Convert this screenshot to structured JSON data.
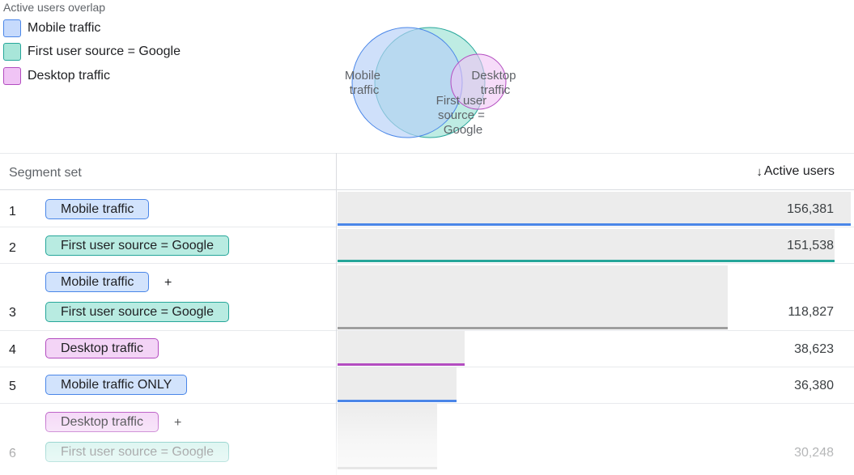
{
  "overlap": {
    "title": "Active users overlap",
    "legend": [
      {
        "label": "Mobile traffic",
        "fill": "#c6dafc",
        "border": "#4a86e8"
      },
      {
        "label": "First user source = Google",
        "fill": "#a8e6d9",
        "border": "#26a69a"
      },
      {
        "label": "Desktop traffic",
        "fill": "#f0c4f5",
        "border": "#b34cc0"
      }
    ],
    "venn_labels": {
      "mobile": [
        "Mobile",
        "traffic"
      ],
      "google": [
        "First user",
        "source =",
        "Google"
      ],
      "desktop": [
        "Desktop",
        "traffic"
      ]
    }
  },
  "table": {
    "header": {
      "segment_set": "Segment set",
      "active_users": "Active users",
      "sort_arrow": "↓"
    },
    "rows": [
      {
        "num": "1",
        "segments": [
          "Mobile traffic"
        ],
        "value": "156,381",
        "users": 156381,
        "color": "#4a86e8"
      },
      {
        "num": "2",
        "segments": [
          "First user source = Google"
        ],
        "value": "151,538",
        "users": 151538,
        "color": "#26a69a"
      },
      {
        "num": "3",
        "segments": [
          "Mobile traffic",
          "First user source = Google"
        ],
        "plus": "+",
        "value": "118,827",
        "users": 118827,
        "color": "#9e9e9e"
      },
      {
        "num": "4",
        "segments": [
          "Desktop traffic"
        ],
        "value": "38,623",
        "users": 38623,
        "color": "#b34cc0"
      },
      {
        "num": "5",
        "segments": [
          "Mobile traffic ONLY"
        ],
        "value": "36,380",
        "users": 36380,
        "color": "#4a86e8"
      },
      {
        "num": "6",
        "segments": [
          "Desktop traffic",
          "First user source = Google"
        ],
        "plus": "+",
        "value": "30,248",
        "users": 30248,
        "color": "#9e9e9e"
      }
    ]
  }
}
